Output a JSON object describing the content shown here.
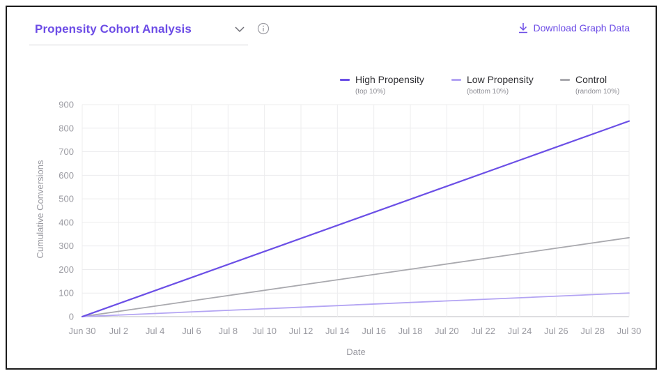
{
  "header": {
    "selector_label": "Propensity Cohort Analysis",
    "download_label": "Download Graph Data"
  },
  "icons": {
    "selector_chevron": "chevron-down-icon",
    "info": "info-icon",
    "download": "download-icon"
  },
  "chart_data": {
    "type": "line",
    "xlabel": "Date",
    "ylabel": "Cumulative Conversions",
    "ylim": [
      0,
      900
    ],
    "yticks": [
      0,
      100,
      200,
      300,
      400,
      500,
      600,
      700,
      800,
      900
    ],
    "x_ticks": [
      "Jun 30",
      "Jul 2",
      "Jul 4",
      "Jul 6",
      "Jul 8",
      "Jul 10",
      "Jul 12",
      "Jul 14",
      "Jul 16",
      "Jul 18",
      "Jul 20",
      "Jul 22",
      "Jul 24",
      "Jul 26",
      "Jul 28",
      "Jul 30"
    ],
    "x": [
      "Jun 30",
      "Jul 30"
    ],
    "grid": true,
    "legend_position": "top-right",
    "series": [
      {
        "name": "High Propensity",
        "subtitle": "(top 10%)",
        "color": "#6b4fe6",
        "values": [
          0,
          830
        ]
      },
      {
        "name": "Low Propensity",
        "subtitle": "(bottom 10%)",
        "color": "#b3a4f3",
        "values": [
          0,
          100
        ]
      },
      {
        "name": "Control",
        "subtitle": "(random 10%)",
        "color": "#a9a9ae",
        "values": [
          0,
          335
        ]
      }
    ]
  }
}
